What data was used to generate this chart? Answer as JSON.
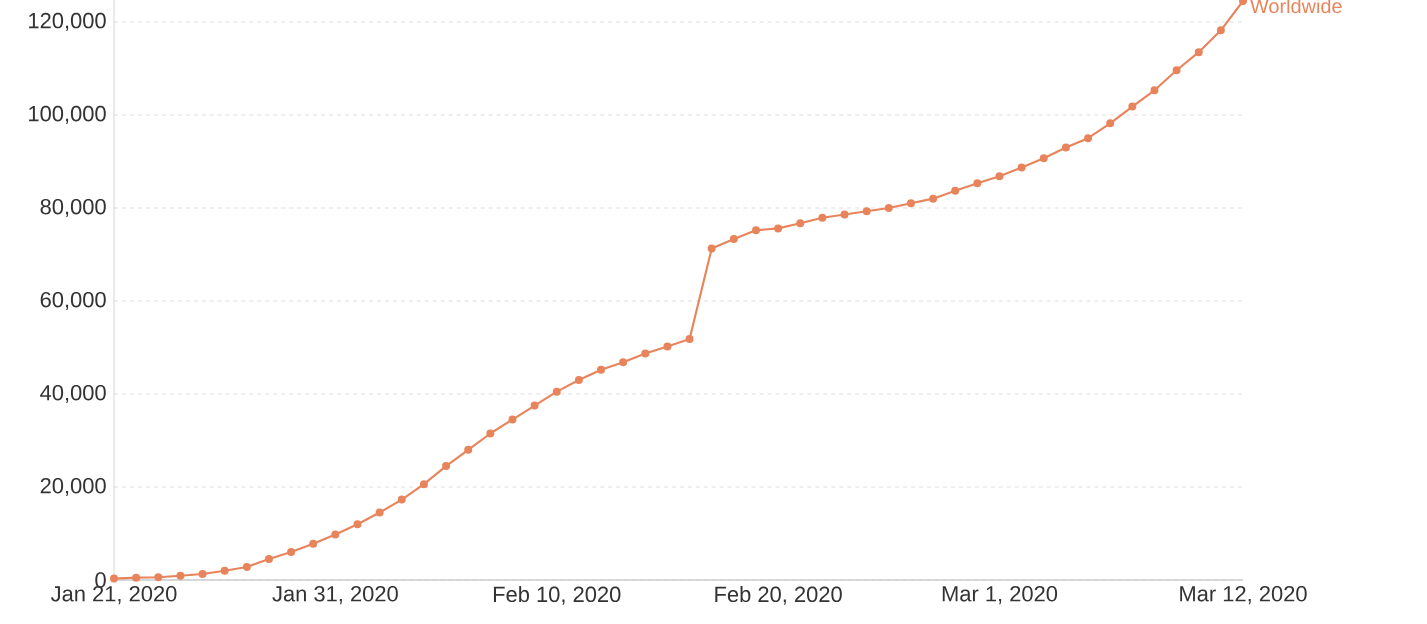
{
  "chart_data": {
    "type": "line",
    "x": [
      "2020-01-21",
      "2020-01-22",
      "2020-01-23",
      "2020-01-24",
      "2020-01-25",
      "2020-01-26",
      "2020-01-27",
      "2020-01-28",
      "2020-01-29",
      "2020-01-30",
      "2020-01-31",
      "2020-02-01",
      "2020-02-02",
      "2020-02-03",
      "2020-02-04",
      "2020-02-05",
      "2020-02-06",
      "2020-02-07",
      "2020-02-08",
      "2020-02-09",
      "2020-02-10",
      "2020-02-11",
      "2020-02-12",
      "2020-02-13",
      "2020-02-14",
      "2020-02-15",
      "2020-02-16",
      "2020-02-17",
      "2020-02-18",
      "2020-02-19",
      "2020-02-20",
      "2020-02-21",
      "2020-02-22",
      "2020-02-23",
      "2020-02-24",
      "2020-02-25",
      "2020-02-26",
      "2020-02-27",
      "2020-02-28",
      "2020-02-29",
      "2020-03-01",
      "2020-03-02",
      "2020-03-03",
      "2020-03-04",
      "2020-03-05",
      "2020-03-06",
      "2020-03-07",
      "2020-03-08",
      "2020-03-09",
      "2020-03-10",
      "2020-03-11",
      "2020-03-12"
    ],
    "series": [
      {
        "name": "Worldwide",
        "color": "#e8845c",
        "values": [
          300,
          500,
          600,
          900,
          1300,
          2000,
          2800,
          4500,
          6000,
          7800,
          9800,
          12000,
          14500,
          17300,
          20600,
          24500,
          28000,
          31500,
          34500,
          37500,
          40500,
          43000,
          45200,
          46800,
          48700,
          50200,
          51800,
          71300,
          73300,
          75200,
          75600,
          76700,
          77900,
          78600,
          79300,
          80000,
          81000,
          82000,
          83700,
          85300,
          86800,
          88700,
          90700,
          93000,
          95000,
          98200,
          101800,
          105300,
          109600,
          113500,
          118200,
          124500
        ]
      }
    ],
    "xlim": [
      "2020-01-21",
      "2020-03-12"
    ],
    "xticks": [
      {
        "value": "2020-01-21",
        "label": "Jan 21, 2020"
      },
      {
        "value": "2020-01-31",
        "label": "Jan 31, 2020"
      },
      {
        "value": "2020-02-10",
        "label": "Feb 10, 2020"
      },
      {
        "value": "2020-02-20",
        "label": "Feb 20, 2020"
      },
      {
        "value": "2020-03-01",
        "label": "Mar 1, 2020"
      },
      {
        "value": "2020-03-12",
        "label": "Mar 12, 2020"
      }
    ],
    "ylim": [
      0,
      125000
    ],
    "yticks": [
      {
        "value": 0,
        "label": "0"
      },
      {
        "value": 20000,
        "label": "20,000"
      },
      {
        "value": 40000,
        "label": "40,000"
      },
      {
        "value": 60000,
        "label": "60,000"
      },
      {
        "value": 80000,
        "label": "80,000"
      },
      {
        "value": 100000,
        "label": "100,000"
      },
      {
        "value": 120000,
        "label": "120,000"
      }
    ],
    "grid": "y",
    "marker": "circle"
  }
}
